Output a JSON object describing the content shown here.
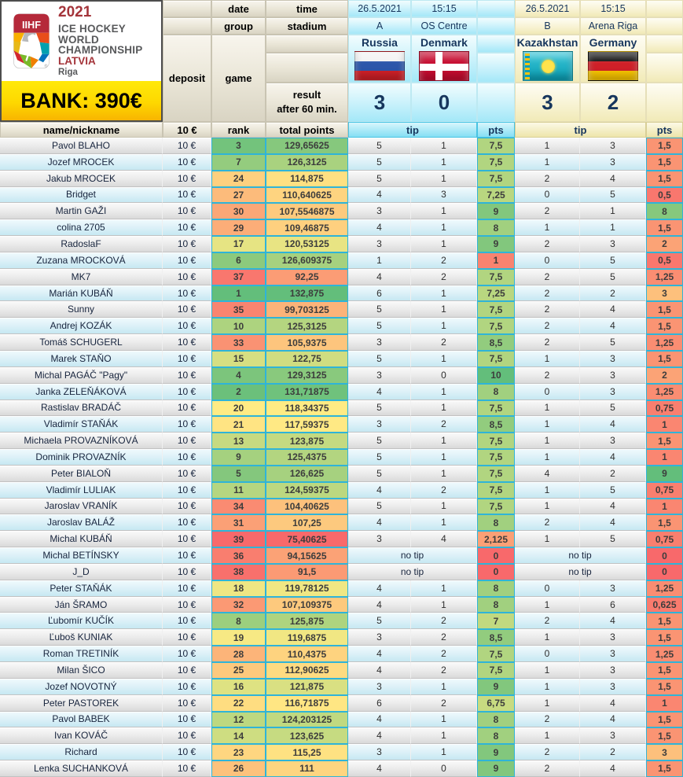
{
  "logo": {
    "shield_text": "IIHF",
    "year": "2021",
    "line1": "ICE HOCKEY",
    "line2": "WORLD",
    "line3": "CHAMPIONSHIP",
    "country": "LATVIA",
    "city": "Riga"
  },
  "bank": {
    "label": "BANK: 390€"
  },
  "headers": {
    "date": "date",
    "group": "group",
    "time": "time",
    "stadium": "stadium",
    "deposit": "deposit",
    "game": "game",
    "result_line1": "result",
    "result_line2": "after 60 min.",
    "name": "name/nickname",
    "deposit_value": "10 €",
    "rank": "rank",
    "total_points": "total points",
    "tip": "tip",
    "pts": "pts",
    "no_tip": "no tip"
  },
  "matches": [
    {
      "date": "26.5.2021",
      "time": "15:15",
      "group": "A",
      "stadium": "OS Centre",
      "home": "Russia",
      "away": "Denmark",
      "home_flag": "russia-flag",
      "away_flag": "denmark-flag",
      "home_score": "3",
      "away_score": "0",
      "theme_color": "#a4e8f8"
    },
    {
      "date": "26.5.2021",
      "time": "15:15",
      "group": "B",
      "stadium": "Arena Riga",
      "home": "Kazakhstan",
      "away": "Germany",
      "home_flag": "kazakhstan-flag",
      "away_flag": "germany-flag",
      "home_score": "3",
      "away_score": "2",
      "theme_color": "#f1eab7"
    }
  ],
  "color_scales": {
    "red": "#F8696B",
    "yellow": "#FFEB84",
    "green": "#63BE7B",
    "rank": {
      "min": 1,
      "mid": 20,
      "max": 39,
      "invert": true
    },
    "total": {
      "min": 75.40625,
      "mid": 118.34375,
      "max": 132.875
    },
    "pts1": {
      "min": 0,
      "mid": 5,
      "max": 10
    },
    "pts2": {
      "min": 0,
      "mid": 4.5,
      "max": 9
    }
  },
  "players": [
    {
      "name": "Pavol BLAHO",
      "deposit": "10 €",
      "rank": 3,
      "total": "129,65625",
      "m1": {
        "h": "5",
        "a": "1",
        "pts": "7,5"
      },
      "m2": {
        "h": "1",
        "a": "3",
        "pts": "1,5"
      }
    },
    {
      "name": "Jozef MROCEK",
      "deposit": "10 €",
      "rank": 7,
      "total": "126,3125",
      "m1": {
        "h": "5",
        "a": "1",
        "pts": "7,5"
      },
      "m2": {
        "h": "1",
        "a": "3",
        "pts": "1,5"
      }
    },
    {
      "name": "Jakub MROCEK",
      "deposit": "10 €",
      "rank": 24,
      "total": "114,875",
      "m1": {
        "h": "5",
        "a": "1",
        "pts": "7,5"
      },
      "m2": {
        "h": "2",
        "a": "4",
        "pts": "1,5"
      }
    },
    {
      "name": "Bridget",
      "deposit": "10 €",
      "rank": 27,
      "total": "110,640625",
      "m1": {
        "h": "4",
        "a": "3",
        "pts": "7,25"
      },
      "m2": {
        "h": "0",
        "a": "5",
        "pts": "0,5"
      }
    },
    {
      "name": "Martin GAŽI",
      "deposit": "10 €",
      "rank": 30,
      "total": "107,5546875",
      "m1": {
        "h": "3",
        "a": "1",
        "pts": "9"
      },
      "m2": {
        "h": "2",
        "a": "1",
        "pts": "8"
      }
    },
    {
      "name": "colina 2705",
      "deposit": "10 €",
      "rank": 29,
      "total": "109,46875",
      "m1": {
        "h": "4",
        "a": "1",
        "pts": "8"
      },
      "m2": {
        "h": "1",
        "a": "1",
        "pts": "1,5"
      }
    },
    {
      "name": "RadoslaF",
      "deposit": "10 €",
      "rank": 17,
      "total": "120,53125",
      "m1": {
        "h": "3",
        "a": "1",
        "pts": "9"
      },
      "m2": {
        "h": "2",
        "a": "3",
        "pts": "2"
      }
    },
    {
      "name": "Zuzana MROCKOVÁ",
      "deposit": "10 €",
      "rank": 6,
      "total": "126,609375",
      "m1": {
        "h": "1",
        "a": "2",
        "pts": "1"
      },
      "m2": {
        "h": "0",
        "a": "5",
        "pts": "0,5"
      }
    },
    {
      "name": "MK7",
      "deposit": "10 €",
      "rank": 37,
      "total": "92,25",
      "m1": {
        "h": "4",
        "a": "2",
        "pts": "7,5"
      },
      "m2": {
        "h": "2",
        "a": "5",
        "pts": "1,25"
      }
    },
    {
      "name": "Marián KUBÁŇ",
      "deposit": "10 €",
      "rank": 1,
      "total": "132,875",
      "m1": {
        "h": "6",
        "a": "1",
        "pts": "7,25"
      },
      "m2": {
        "h": "2",
        "a": "2",
        "pts": "3"
      }
    },
    {
      "name": "Sunny",
      "deposit": "10 €",
      "rank": 35,
      "total": "99,703125",
      "m1": {
        "h": "5",
        "a": "1",
        "pts": "7,5"
      },
      "m2": {
        "h": "2",
        "a": "4",
        "pts": "1,5"
      }
    },
    {
      "name": "Andrej KOZÁK",
      "deposit": "10 €",
      "rank": 10,
      "total": "125,3125",
      "m1": {
        "h": "5",
        "a": "1",
        "pts": "7,5"
      },
      "m2": {
        "h": "2",
        "a": "4",
        "pts": "1,5"
      }
    },
    {
      "name": "Tomáš SCHUGERL",
      "deposit": "10 €",
      "rank": 33,
      "total": "105,9375",
      "m1": {
        "h": "3",
        "a": "2",
        "pts": "8,5"
      },
      "m2": {
        "h": "2",
        "a": "5",
        "pts": "1,25"
      }
    },
    {
      "name": "Marek STAŇO",
      "deposit": "10 €",
      "rank": 15,
      "total": "122,75",
      "m1": {
        "h": "5",
        "a": "1",
        "pts": "7,5"
      },
      "m2": {
        "h": "1",
        "a": "3",
        "pts": "1,5"
      }
    },
    {
      "name": "Michal PAGÁČ \"Pagy\"",
      "deposit": "10 €",
      "rank": 4,
      "total": "129,3125",
      "m1": {
        "h": "3",
        "a": "0",
        "pts": "10"
      },
      "m2": {
        "h": "2",
        "a": "3",
        "pts": "2"
      }
    },
    {
      "name": "Janka ZELEŇÁKOVÁ",
      "deposit": "10 €",
      "rank": 2,
      "total": "131,71875",
      "m1": {
        "h": "4",
        "a": "1",
        "pts": "8"
      },
      "m2": {
        "h": "0",
        "a": "3",
        "pts": "1,25"
      }
    },
    {
      "name": "Rastislav BRADÁČ",
      "deposit": "10 €",
      "rank": 20,
      "total": "118,34375",
      "m1": {
        "h": "5",
        "a": "1",
        "pts": "7,5"
      },
      "m2": {
        "h": "1",
        "a": "5",
        "pts": "0,75"
      }
    },
    {
      "name": "Vladimír STAŇÁK",
      "deposit": "10 €",
      "rank": 21,
      "total": "117,59375",
      "m1": {
        "h": "3",
        "a": "2",
        "pts": "8,5"
      },
      "m2": {
        "h": "1",
        "a": "4",
        "pts": "1"
      }
    },
    {
      "name": "Michaela PROVAZNÍKOVÁ",
      "deposit": "10 €",
      "rank": 13,
      "total": "123,875",
      "m1": {
        "h": "5",
        "a": "1",
        "pts": "7,5"
      },
      "m2": {
        "h": "1",
        "a": "3",
        "pts": "1,5"
      }
    },
    {
      "name": "Dominik PROVAZNÍK",
      "deposit": "10 €",
      "rank": 9,
      "total": "125,4375",
      "m1": {
        "h": "5",
        "a": "1",
        "pts": "7,5"
      },
      "m2": {
        "h": "1",
        "a": "4",
        "pts": "1"
      }
    },
    {
      "name": "Peter BIALOŇ",
      "deposit": "10 €",
      "rank": 5,
      "total": "126,625",
      "m1": {
        "h": "5",
        "a": "1",
        "pts": "7,5"
      },
      "m2": {
        "h": "4",
        "a": "2",
        "pts": "9"
      }
    },
    {
      "name": "Vladimír LULIAK",
      "deposit": "10 €",
      "rank": 11,
      "total": "124,59375",
      "m1": {
        "h": "4",
        "a": "2",
        "pts": "7,5"
      },
      "m2": {
        "h": "1",
        "a": "5",
        "pts": "0,75"
      }
    },
    {
      "name": "Jaroslav VRANÍK",
      "deposit": "10 €",
      "rank": 34,
      "total": "104,40625",
      "m1": {
        "h": "5",
        "a": "1",
        "pts": "7,5"
      },
      "m2": {
        "h": "1",
        "a": "4",
        "pts": "1"
      }
    },
    {
      "name": "Jaroslav BALÁŽ",
      "deposit": "10 €",
      "rank": 31,
      "total": "107,25",
      "m1": {
        "h": "4",
        "a": "1",
        "pts": "8"
      },
      "m2": {
        "h": "2",
        "a": "4",
        "pts": "1,5"
      }
    },
    {
      "name": "Michal KUBÁŇ",
      "deposit": "10 €",
      "rank": 39,
      "total": "75,40625",
      "m1": {
        "h": "3",
        "a": "4",
        "pts": "2,125"
      },
      "m2": {
        "h": "1",
        "a": "5",
        "pts": "0,75"
      }
    },
    {
      "name": "Michal BETÍNSKY",
      "deposit": "10 €",
      "rank": 36,
      "total": "94,15625",
      "m1": {
        "no_tip": true,
        "pts": "0"
      },
      "m2": {
        "no_tip": true,
        "pts": "0"
      }
    },
    {
      "name": "J_D",
      "deposit": "10 €",
      "rank": 38,
      "total": "91,5",
      "m1": {
        "no_tip": true,
        "pts": "0"
      },
      "m2": {
        "no_tip": true,
        "pts": "0"
      }
    },
    {
      "name": "Peter STAŇÁK",
      "deposit": "10 €",
      "rank": 18,
      "total": "119,78125",
      "m1": {
        "h": "4",
        "a": "1",
        "pts": "8"
      },
      "m2": {
        "h": "0",
        "a": "3",
        "pts": "1,25"
      }
    },
    {
      "name": "Ján ŠRAMO",
      "deposit": "10 €",
      "rank": 32,
      "total": "107,109375",
      "m1": {
        "h": "4",
        "a": "1",
        "pts": "8"
      },
      "m2": {
        "h": "1",
        "a": "6",
        "pts": "0,625"
      }
    },
    {
      "name": "Ľubomír KUČÍK",
      "deposit": "10 €",
      "rank": 8,
      "total": "125,875",
      "m1": {
        "h": "5",
        "a": "2",
        "pts": "7"
      },
      "m2": {
        "h": "2",
        "a": "4",
        "pts": "1,5"
      }
    },
    {
      "name": "Ľuboš KUNIAK",
      "deposit": "10 €",
      "rank": 19,
      "total": "119,6875",
      "m1": {
        "h": "3",
        "a": "2",
        "pts": "8,5"
      },
      "m2": {
        "h": "1",
        "a": "3",
        "pts": "1,5"
      }
    },
    {
      "name": "Roman TRETINÍK",
      "deposit": "10 €",
      "rank": 28,
      "total": "110,4375",
      "m1": {
        "h": "4",
        "a": "2",
        "pts": "7,5"
      },
      "m2": {
        "h": "0",
        "a": "3",
        "pts": "1,25"
      }
    },
    {
      "name": "Milan ŠICO",
      "deposit": "10 €",
      "rank": 25,
      "total": "112,90625",
      "m1": {
        "h": "4",
        "a": "2",
        "pts": "7,5"
      },
      "m2": {
        "h": "1",
        "a": "3",
        "pts": "1,5"
      }
    },
    {
      "name": "Jozef NOVOTNÝ",
      "deposit": "10 €",
      "rank": 16,
      "total": "121,875",
      "m1": {
        "h": "3",
        "a": "1",
        "pts": "9"
      },
      "m2": {
        "h": "1",
        "a": "3",
        "pts": "1,5"
      }
    },
    {
      "name": "Peter PASTOREK",
      "deposit": "10 €",
      "rank": 22,
      "total": "116,71875",
      "m1": {
        "h": "6",
        "a": "2",
        "pts": "6,75"
      },
      "m2": {
        "h": "1",
        "a": "4",
        "pts": "1"
      }
    },
    {
      "name": "Pavol BABEK",
      "deposit": "10 €",
      "rank": 12,
      "total": "124,203125",
      "m1": {
        "h": "4",
        "a": "1",
        "pts": "8"
      },
      "m2": {
        "h": "2",
        "a": "4",
        "pts": "1,5"
      }
    },
    {
      "name": "Ivan KOVÁČ",
      "deposit": "10 €",
      "rank": 14,
      "total": "123,625",
      "m1": {
        "h": "4",
        "a": "1",
        "pts": "8"
      },
      "m2": {
        "h": "1",
        "a": "3",
        "pts": "1,5"
      }
    },
    {
      "name": "Richard",
      "deposit": "10 €",
      "rank": 23,
      "total": "115,25",
      "m1": {
        "h": "3",
        "a": "1",
        "pts": "9"
      },
      "m2": {
        "h": "2",
        "a": "2",
        "pts": "3"
      }
    },
    {
      "name": "Lenka SUCHANKOVÁ",
      "deposit": "10 €",
      "rank": 26,
      "total": "111",
      "m1": {
        "h": "4",
        "a": "0",
        "pts": "9"
      },
      "m2": {
        "h": "2",
        "a": "4",
        "pts": "1,5"
      }
    }
  ]
}
